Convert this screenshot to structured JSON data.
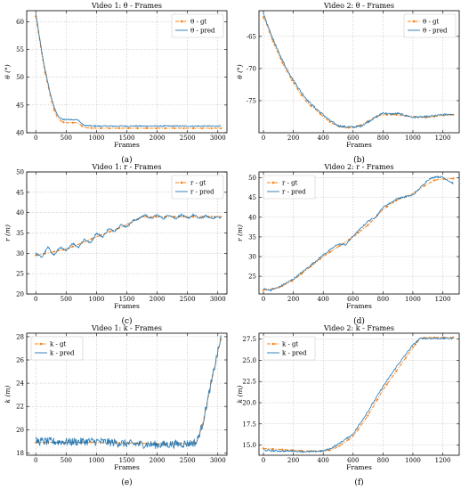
{
  "chart_data": [
    {
      "type": "line",
      "title": "Video 1: θ - Frames",
      "xlabel": "Frames",
      "ylabel": "θ (°)",
      "xlim": [
        -150,
        3150
      ],
      "ylim": [
        40,
        62
      ],
      "xticks": [
        "0",
        "500",
        "1000",
        "1500",
        "2000",
        "2500",
        "3000"
      ],
      "yticks": [
        "40",
        "45",
        "50",
        "55",
        "60"
      ],
      "caption": "(a)",
      "legend": "top-right",
      "grid": true,
      "series": [
        {
          "name": "θ - gt",
          "color": "#ff7f0e",
          "style": "dashdot-marker",
          "x": [
            0,
            50,
            100,
            150,
            200,
            250,
            300,
            350,
            400,
            450,
            500,
            600,
            700,
            750,
            800,
            1000,
            1500,
            2000,
            2500,
            3000,
            3050
          ],
          "y": [
            61,
            57.5,
            54,
            51,
            48.5,
            46,
            44.2,
            42.8,
            42.2,
            41.9,
            41.8,
            41.8,
            41.8,
            41.3,
            40.9,
            40.8,
            40.8,
            40.8,
            40.8,
            40.8,
            40.8
          ]
        },
        {
          "name": "θ - pred",
          "color": "#1f77b4",
          "style": "solid",
          "x": [
            0,
            50,
            100,
            150,
            200,
            250,
            300,
            350,
            400,
            450,
            500,
            600,
            700,
            750,
            800,
            1000,
            1500,
            2000,
            2500,
            3000,
            3050
          ],
          "y": [
            61.5,
            58,
            54.5,
            51.5,
            49,
            46.5,
            44.8,
            43.3,
            42.6,
            42.4,
            42.4,
            42.4,
            42.3,
            41.7,
            41.3,
            41.2,
            41.2,
            41.2,
            41.2,
            41.2,
            41.2
          ],
          "noise": 0.12
        }
      ]
    },
    {
      "type": "line",
      "title": "Video 2: θ - Frames",
      "xlabel": "Frames",
      "ylabel": "θ (°)",
      "xlim": [
        -30,
        1310
      ],
      "ylim": [
        -80,
        -61
      ],
      "xticks": [
        "0",
        "200",
        "400",
        "600",
        "800",
        "1000",
        "1200"
      ],
      "yticks": [
        "-65",
        "-70",
        "-75"
      ],
      "caption": "(b)",
      "legend": "top-right",
      "grid": true,
      "series": [
        {
          "name": "θ - gt",
          "color": "#ff7f0e",
          "style": "dashdot-marker",
          "x": [
            0,
            20,
            50,
            100,
            150,
            200,
            250,
            300,
            350,
            400,
            450,
            500,
            550,
            600,
            650,
            700,
            750,
            800,
            850,
            900,
            1000,
            1100,
            1200,
            1270
          ],
          "y": [
            -62,
            -63,
            -65,
            -67.8,
            -70.2,
            -72.2,
            -74,
            -75.5,
            -76.4,
            -77.5,
            -78.4,
            -79,
            -79.2,
            -79.2,
            -78.8,
            -78.2,
            -77.5,
            -77.2,
            -77.2,
            -77.2,
            -77.5,
            -77.6,
            -77.3,
            -77.2
          ]
        },
        {
          "name": "θ - pred",
          "color": "#1f77b4",
          "style": "solid",
          "x": [
            0,
            20,
            50,
            100,
            150,
            200,
            250,
            300,
            350,
            400,
            450,
            500,
            550,
            600,
            650,
            700,
            750,
            800,
            850,
            900,
            1000,
            1100,
            1200,
            1270
          ],
          "y": [
            -61.5,
            -62.8,
            -64.6,
            -67.4,
            -69.8,
            -71.8,
            -73.6,
            -75.1,
            -76.2,
            -77.2,
            -78.2,
            -78.9,
            -79.1,
            -79.1,
            -79,
            -78.3,
            -77.6,
            -76.9,
            -77.1,
            -77,
            -77.6,
            -77.5,
            -77.2,
            -77.1
          ],
          "noise": 0.15
        }
      ]
    },
    {
      "type": "line",
      "title": "Video 1: r - Frames",
      "xlabel": "Frames",
      "ylabel": "r (m)",
      "xlim": [
        -150,
        3150
      ],
      "ylim": [
        20,
        50
      ],
      "xticks": [
        "0",
        "500",
        "1000",
        "1500",
        "2000",
        "2500",
        "3000"
      ],
      "yticks": [
        "20",
        "25",
        "30",
        "35",
        "40",
        "45",
        "50"
      ],
      "caption": "(c)",
      "legend": "top-right",
      "grid": true,
      "series": [
        {
          "name": "r - gt",
          "color": "#ff7f0e",
          "style": "dashdot-marker",
          "x": [
            0,
            500,
            1000,
            1500,
            1750,
            2000,
            2500,
            3000,
            3050
          ],
          "y": [
            29.5,
            31,
            34,
            37,
            39,
            39,
            39,
            39,
            39
          ]
        },
        {
          "name": "r - pred",
          "color": "#1f77b4",
          "style": "solid",
          "x": [
            0,
            100,
            200,
            300,
            400,
            500,
            600,
            700,
            800,
            900,
            1000,
            1100,
            1200,
            1300,
            1400,
            1500,
            1600,
            1700,
            1800,
            1900,
            2000,
            2100,
            2200,
            2300,
            2400,
            2500,
            2600,
            2700,
            2800,
            2900,
            3000,
            3050
          ],
          "y": [
            30,
            29,
            31.5,
            29.5,
            31.5,
            30.5,
            32.5,
            31.5,
            33.5,
            32.5,
            35,
            34,
            36,
            35.5,
            37,
            36.5,
            38,
            38.5,
            39.5,
            38.5,
            39.5,
            38.5,
            39.5,
            38.5,
            39.5,
            38.5,
            39.5,
            38.5,
            39.2,
            38.6,
            39,
            38.7
          ],
          "noise": 0.25
        }
      ]
    },
    {
      "type": "line",
      "title": "Video 2: r - Frames",
      "xlabel": "Frames",
      "ylabel": "r (m)",
      "xlim": [
        -30,
        1310
      ],
      "ylim": [
        20.5,
        51.5
      ],
      "xticks": [
        "0",
        "200",
        "400",
        "600",
        "800",
        "1000",
        "1200"
      ],
      "yticks": [
        "25",
        "30",
        "35",
        "40",
        "45",
        "50"
      ],
      "caption": "(d)",
      "legend": "top-left",
      "grid": true,
      "series": [
        {
          "name": "r - gt",
          "color": "#ff7f0e",
          "style": "dashdot-marker",
          "x": [
            0,
            50,
            100,
            200,
            300,
            400,
            500,
            600,
            700,
            800,
            900,
            1000,
            1100,
            1150,
            1200,
            1270
          ],
          "y": [
            21.5,
            21.8,
            22,
            24,
            27,
            30,
            32.5,
            35,
            38,
            42,
            44.5,
            46,
            48.5,
            49.5,
            49.7,
            49.8
          ]
        },
        {
          "name": "r - pred",
          "color": "#1f77b4",
          "style": "solid",
          "x": [
            0,
            50,
            100,
            200,
            300,
            400,
            500,
            550,
            600,
            700,
            750,
            800,
            900,
            1000,
            1050,
            1100,
            1150,
            1200,
            1250,
            1270
          ],
          "y": [
            21.8,
            21.5,
            22.2,
            24.3,
            27.3,
            30.4,
            33.2,
            33,
            35.2,
            39,
            40,
            42.5,
            44.8,
            45.6,
            47.5,
            49.5,
            50.3,
            50.2,
            49,
            48.6
          ],
          "noise": 0.2
        }
      ]
    },
    {
      "type": "line",
      "title": "Video 1: k - Frames",
      "xlabel": "Frames",
      "ylabel": "k (m)",
      "xlim": [
        -150,
        3150
      ],
      "ylim": [
        17.8,
        28.3
      ],
      "xticks": [
        "0",
        "500",
        "1000",
        "1500",
        "2000",
        "2500",
        "3000"
      ],
      "yticks": [
        "18",
        "20",
        "22",
        "24",
        "26",
        "28"
      ],
      "caption": "(e)",
      "legend": "top-left",
      "grid": true,
      "series": [
        {
          "name": "k - gt",
          "color": "#ff7f0e",
          "style": "dashdot-marker",
          "x": [
            0,
            500,
            1000,
            1500,
            2000,
            2500,
            2650,
            2750,
            2850,
            2950,
            3050
          ],
          "y": [
            18.9,
            18.9,
            18.9,
            18.85,
            18.8,
            18.8,
            18.9,
            20.5,
            23,
            25.5,
            27.8
          ]
        },
        {
          "name": "k - pred",
          "color": "#1f77b4",
          "style": "solid",
          "x": [
            0,
            500,
            1000,
            1500,
            2000,
            2500,
            2650,
            2750,
            2850,
            2950,
            3050
          ],
          "y": [
            19.0,
            18.95,
            19.0,
            18.8,
            18.7,
            18.8,
            18.9,
            20.5,
            23,
            25.5,
            27.9
          ],
          "noise": 0.35
        }
      ]
    },
    {
      "type": "line",
      "title": "Video 2: k - Frames",
      "xlabel": "Frames",
      "ylabel": "k (m)",
      "xlim": [
        -30,
        1310
      ],
      "ylim": [
        13.8,
        28.2
      ],
      "xticks": [
        "0",
        "200",
        "400",
        "600",
        "800",
        "1000",
        "1200"
      ],
      "yticks": [
        "15.0",
        "17.5",
        "20.0",
        "22.5",
        "25.0",
        "27.5"
      ],
      "caption": "(f)",
      "legend": "top-left",
      "grid": true,
      "series": [
        {
          "name": "k - gt",
          "color": "#ff7f0e",
          "style": "dashdot-marker",
          "x": [
            0,
            100,
            200,
            300,
            400,
            450,
            500,
            600,
            700,
            800,
            900,
            1000,
            1050,
            1100,
            1200,
            1270
          ],
          "y": [
            14.6,
            14.5,
            14.4,
            14.3,
            14.3,
            14.4,
            14.8,
            16,
            18.5,
            21.5,
            24,
            26.5,
            27.6,
            27.7,
            27.7,
            27.7
          ]
        },
        {
          "name": "k - pred",
          "color": "#1f77b4",
          "style": "solid",
          "x": [
            0,
            100,
            200,
            300,
            400,
            450,
            500,
            600,
            700,
            800,
            900,
            1000,
            1050,
            1100,
            1200,
            1270
          ],
          "y": [
            14.4,
            14.3,
            14.3,
            14.2,
            14.3,
            14.6,
            15.1,
            16.3,
            19,
            21.9,
            24.5,
            26.8,
            27.6,
            27.6,
            27.6,
            27.6
          ],
          "noise": 0.1
        }
      ]
    }
  ]
}
